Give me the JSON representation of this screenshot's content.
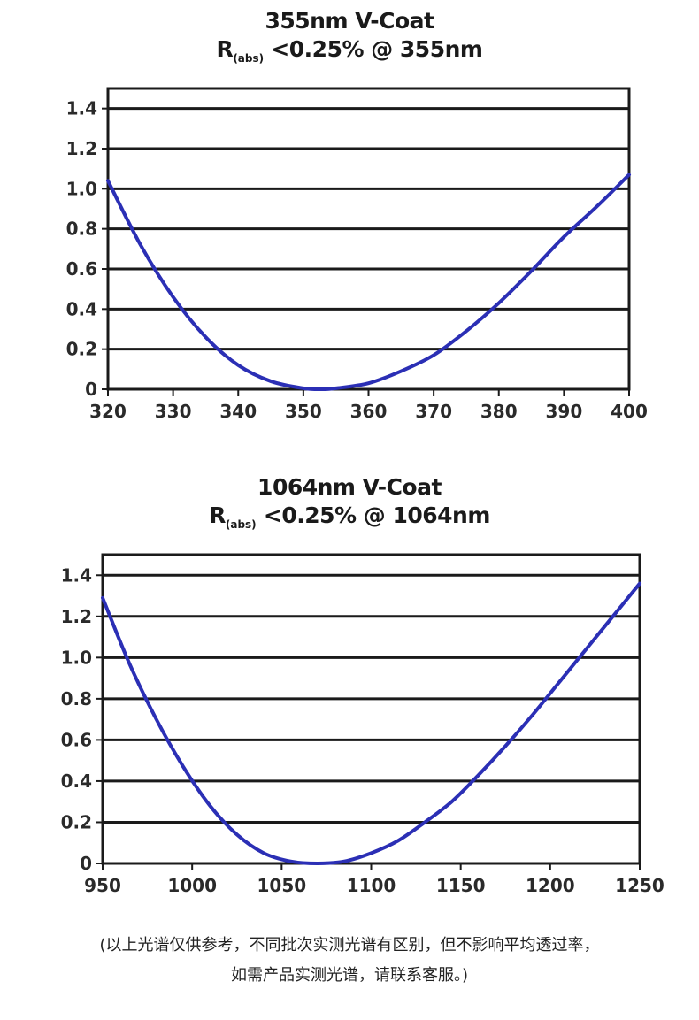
{
  "chart_data": [
    {
      "type": "line",
      "title": "355nm V-Coat",
      "subtitle_prefix": "R",
      "subtitle_sub": "(abs)",
      "subtitle_suffix": " <0.25% @ 355nm",
      "xlabel": "",
      "ylabel": "",
      "xlim": [
        320,
        400
      ],
      "ylim": [
        0,
        1.5
      ],
      "x_ticks": [
        "320",
        "330",
        "340",
        "350",
        "360",
        "370",
        "380",
        "390",
        "400"
      ],
      "y_ticks": [
        "0",
        "0.2",
        "0.4",
        "0.6",
        "0.8",
        "1.0",
        "1.2",
        "1.4"
      ],
      "grid": "horizontal",
      "series_color": "#2b2fb5",
      "series": [
        {
          "x": [
            320,
            325,
            330,
            335,
            340,
            345,
            350,
            353,
            355,
            360,
            365,
            370,
            375,
            380,
            385,
            390,
            395,
            400
          ],
          "y": [
            1.04,
            0.72,
            0.46,
            0.26,
            0.12,
            0.04,
            0.005,
            0.0,
            0.005,
            0.03,
            0.09,
            0.17,
            0.29,
            0.43,
            0.59,
            0.76,
            0.91,
            1.07
          ]
        }
      ]
    },
    {
      "type": "line",
      "title": "1064nm V-Coat",
      "subtitle_prefix": "R",
      "subtitle_sub": "(abs)",
      "subtitle_suffix": " <0.25% @ 1064nm",
      "xlabel": "",
      "ylabel": "",
      "xlim": [
        950,
        1250
      ],
      "ylim": [
        0,
        1.5
      ],
      "x_ticks": [
        "950",
        "1000",
        "1050",
        "1100",
        "1150",
        "1200",
        "1250"
      ],
      "y_ticks": [
        "0",
        "0.2",
        "0.4",
        "0.6",
        "0.8",
        "1.0",
        "1.2",
        "1.4"
      ],
      "grid": "horizontal",
      "series_color": "#2b2fb5",
      "series": [
        {
          "x": [
            950,
            965,
            980,
            995,
            1010,
            1025,
            1040,
            1055,
            1070,
            1085,
            1100,
            1115,
            1130,
            1145,
            1160,
            1175,
            1190,
            1205,
            1220,
            1235,
            1250
          ],
          "y": [
            1.29,
            0.97,
            0.7,
            0.47,
            0.28,
            0.14,
            0.05,
            0.01,
            0.0,
            0.01,
            0.05,
            0.11,
            0.2,
            0.3,
            0.43,
            0.57,
            0.72,
            0.88,
            1.04,
            1.2,
            1.36
          ]
        }
      ]
    }
  ],
  "footnote": {
    "line1": "(以上光谱仅供参考，不同批次实测光谱有区别，但不影响平均透过率，",
    "line2": "如需产品实测光谱，请联系客服。)"
  }
}
